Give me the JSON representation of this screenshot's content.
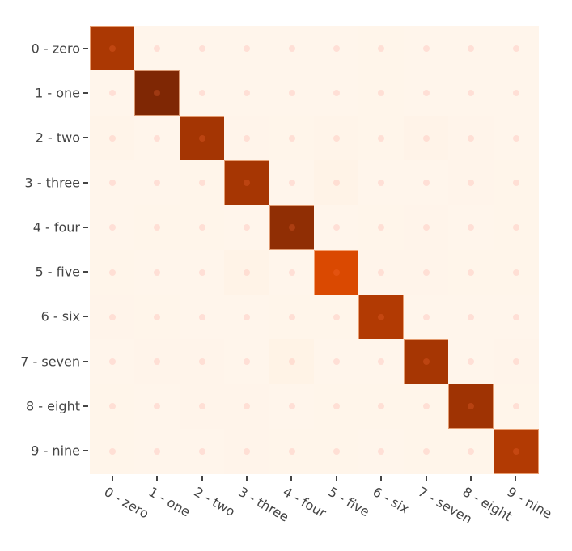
{
  "chart_data": {
    "type": "heatmap",
    "title": "",
    "xlabel": "",
    "ylabel": "",
    "colorscale": "Oranges",
    "legend": "none",
    "x_categories": [
      "0 - zero",
      "1 - one",
      "2 - two",
      "3 - three",
      "4 - four",
      "5 - five",
      "6 - six",
      "7 - seven",
      "8 - eight",
      "9 - nine"
    ],
    "y_categories": [
      "0 - zero",
      "1 - one",
      "2 - two",
      "3 - three",
      "4 - four",
      "5 - five",
      "6 - six",
      "7 - seven",
      "8 - eight",
      "9 - nine"
    ],
    "z": [
      [
        970,
        0,
        1,
        1,
        0,
        2,
        3,
        1,
        2,
        0
      ],
      [
        0,
        1125,
        2,
        2,
        0,
        1,
        3,
        1,
        1,
        0
      ],
      [
        8,
        2,
        990,
        6,
        3,
        12,
        4,
        15,
        5,
        2
      ],
      [
        1,
        0,
        3,
        985,
        0,
        17,
        0,
        2,
        5,
        3
      ],
      [
        2,
        3,
        4,
        0,
        1063,
        1,
        4,
        5,
        2,
        4
      ],
      [
        3,
        2,
        1,
        20,
        1,
        840,
        5,
        6,
        4,
        3
      ],
      [
        7,
        3,
        2,
        1,
        3,
        4,
        950,
        0,
        2,
        0
      ],
      [
        1,
        5,
        6,
        2,
        22,
        0,
        0,
        985,
        2,
        5
      ],
      [
        3,
        1,
        5,
        5,
        2,
        3,
        4,
        3,
        1010,
        4
      ],
      [
        3,
        2,
        1,
        6,
        3,
        4,
        1,
        4,
        3,
        950
      ]
    ],
    "zmin": 0,
    "zmax": 1125,
    "grid": false
  },
  "colors": {
    "scale": [
      "#fff5eb",
      "#fee6ce",
      "#fdd0a2",
      "#fdae6b",
      "#fd8d3c",
      "#f16913",
      "#d94801",
      "#a63603",
      "#7f2704"
    ]
  }
}
